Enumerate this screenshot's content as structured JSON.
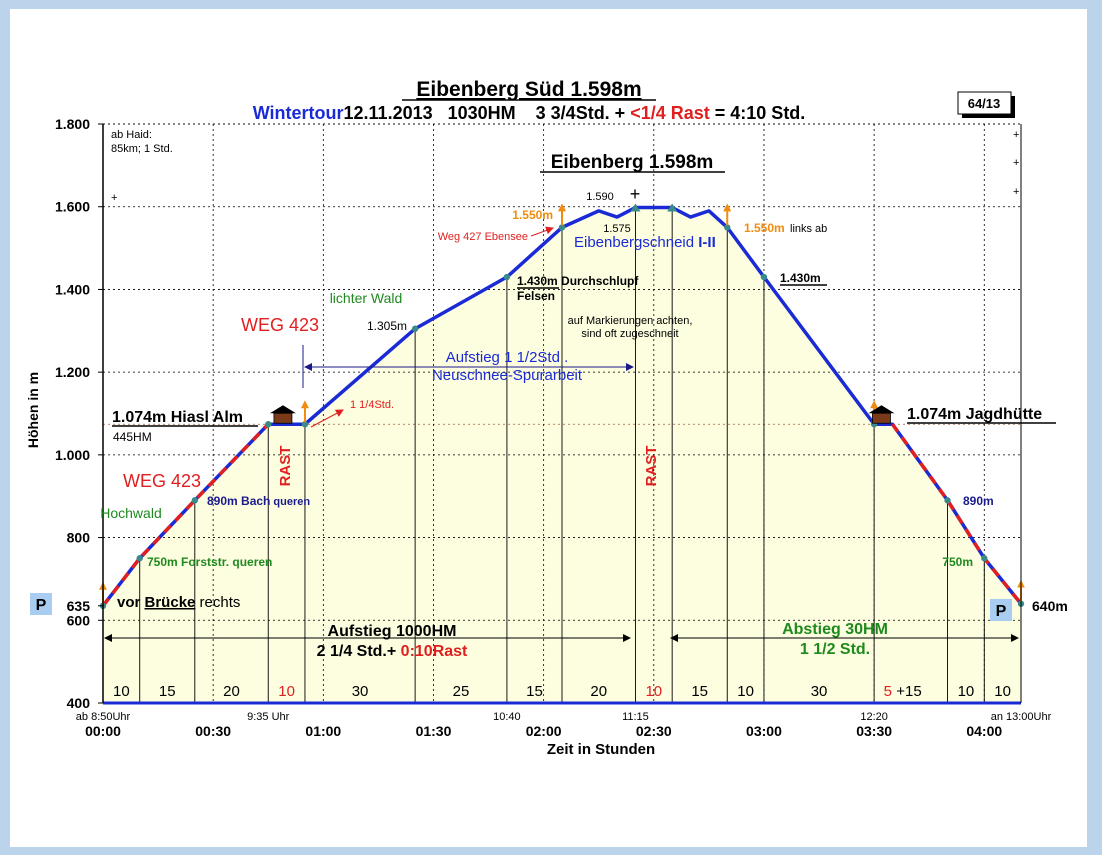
{
  "chart_data": {
    "type": "line",
    "title": "Eibenberg Süd 1.598m",
    "subtitle": {
      "part1": "Wintertour",
      "part2": "12.11.2013   1030HM    3 3/4Std. + ",
      "part3": "<1/4 Rast",
      "part4": " = 4:10 Std."
    },
    "badge": "64/13",
    "xlabel": "Zeit in  Stunden",
    "ylabel": "Höhen in m",
    "xlim": [
      0,
      250
    ],
    "ylim": [
      400,
      1800
    ],
    "x_ticks": [
      {
        "x": 0,
        "label": "00:00"
      },
      {
        "x": 30,
        "label": "00:30"
      },
      {
        "x": 60,
        "label": "01:00"
      },
      {
        "x": 90,
        "label": "01:30"
      },
      {
        "x": 120,
        "label": "02:00"
      },
      {
        "x": 150,
        "label": "02:30"
      },
      {
        "x": 180,
        "label": "03:00"
      },
      {
        "x": 210,
        "label": "03:30"
      },
      {
        "x": 240,
        "label": "04:00"
      }
    ],
    "y_ticks": [
      {
        "y": 1800,
        "label": "1.800"
      },
      {
        "y": 1600,
        "label": "1.600"
      },
      {
        "y": 1400,
        "label": "1.400"
      },
      {
        "y": 1200,
        "label": "1.200"
      },
      {
        "y": 1000,
        "label": "1.000"
      },
      {
        "y": 800,
        "label": "800"
      },
      {
        "y": 635,
        "label": "635"
      },
      {
        "y": 600,
        "label": "600"
      },
      {
        "y": 400,
        "label": "400"
      }
    ],
    "clock_times": [
      {
        "x": 0,
        "label": "ab 8:50Uhr"
      },
      {
        "x": 45,
        "label": "9:35 Uhr"
      },
      {
        "x": 110,
        "label": "10:40"
      },
      {
        "x": 145,
        "label": "11:15"
      },
      {
        "x": 210,
        "label": "12:20"
      },
      {
        "x": 250,
        "label": "an 13:00Uhr"
      }
    ],
    "profile": [
      {
        "x": 0,
        "y": 635
      },
      {
        "x": 10,
        "y": 750
      },
      {
        "x": 25,
        "y": 890
      },
      {
        "x": 45,
        "y": 1074
      },
      {
        "x": 55,
        "y": 1074
      },
      {
        "x": 85,
        "y": 1305
      },
      {
        "x": 110,
        "y": 1430
      },
      {
        "x": 125,
        "y": 1550
      },
      {
        "x": 135,
        "y": 1590
      },
      {
        "x": 140,
        "y": 1575
      },
      {
        "x": 145,
        "y": 1598
      },
      {
        "x": 155,
        "y": 1598
      },
      {
        "x": 160,
        "y": 1575
      },
      {
        "x": 165,
        "y": 1590
      },
      {
        "x": 170,
        "y": 1550
      },
      {
        "x": 180,
        "y": 1430
      },
      {
        "x": 210,
        "y": 1074
      },
      {
        "x": 215,
        "y": 1074
      },
      {
        "x": 230,
        "y": 890
      },
      {
        "x": 240,
        "y": 750
      },
      {
        "x": 250,
        "y": 640
      }
    ],
    "red_segments": [
      [
        0,
        45
      ],
      [
        215,
        250
      ]
    ],
    "markers": [
      {
        "x": 0,
        "y": 635
      },
      {
        "x": 10,
        "y": 750
      },
      {
        "x": 25,
        "y": 890
      },
      {
        "x": 45,
        "y": 1074
      },
      {
        "x": 55,
        "y": 1074
      },
      {
        "x": 85,
        "y": 1305
      },
      {
        "x": 110,
        "y": 1430
      },
      {
        "x": 125,
        "y": 1550
      },
      {
        "x": 145,
        "y": 1598
      },
      {
        "x": 155,
        "y": 1598
      },
      {
        "x": 170,
        "y": 1550
      },
      {
        "x": 180,
        "y": 1430
      },
      {
        "x": 210,
        "y": 1074
      },
      {
        "x": 230,
        "y": 890
      },
      {
        "x": 240,
        "y": 750
      },
      {
        "x": 250,
        "y": 640
      }
    ],
    "pointer_arrows": [
      0,
      55,
      125,
      170,
      210,
      250
    ],
    "huts": [
      {
        "x": 49
      },
      {
        "x": 212
      }
    ],
    "segment_lines": [
      10,
      25,
      45,
      55,
      85,
      110,
      125,
      145,
      155,
      170,
      180,
      210,
      230,
      240
    ],
    "segment_minutes": [
      {
        "x": 5,
        "label": "10",
        "color": "#000000"
      },
      {
        "x": 17.5,
        "label": "15",
        "color": "#000000"
      },
      {
        "x": 35,
        "label": "20",
        "color": "#000000"
      },
      {
        "x": 50,
        "label": "10",
        "color": "#e02020"
      },
      {
        "x": 70,
        "label": "30",
        "color": "#000000"
      },
      {
        "x": 97.5,
        "label": "25",
        "color": "#000000"
      },
      {
        "x": 117.5,
        "label": "15",
        "color": "#000000"
      },
      {
        "x": 135,
        "label": "20",
        "color": "#000000"
      },
      {
        "x": 150,
        "label": "10",
        "color": "#e02020"
      },
      {
        "x": 162.5,
        "label": "15",
        "color": "#000000"
      },
      {
        "x": 175,
        "label": "10",
        "color": "#000000"
      },
      {
        "x": 195,
        "label": "30",
        "color": "#000000"
      },
      {
        "x": 219.5,
        "label": "+15",
        "color": "#000000"
      },
      {
        "x": 235,
        "label": "10",
        "color": "#000000"
      },
      {
        "x": 245,
        "label": "10",
        "color": "#000000"
      }
    ],
    "minute_five": {
      "x": 217,
      "label": "5"
    },
    "annotations": {
      "summit_title": "Eibenberg 1.598m",
      "haid_note_1": "ab Haid:",
      "haid_note_2": "85km; 1 Std.",
      "l1590": "1.590",
      "l1575": "1.575",
      "l1550_left": "1.550m",
      "weg427": "Weg 427 Ebensee",
      "eibenbergschneid_1": "Eibenbergschneid ",
      "eibenbergschneid_2": "I-II",
      "l1550_right": "1.550m",
      "links_ab": " links ab",
      "l1430_1": "1.430m Durchschlupf",
      "l1430_2": "Felsen",
      "l1430_right": "1.430m",
      "markierung_1": "auf Markierungen achten,",
      "markierung_2": "sind oft zugeschneit",
      "lichter_wald": "lichter Wald",
      "l1305": "1.305m",
      "weg423_upper": "WEG 423",
      "aufstieg_1": "Aufstieg 1 1/2Std .",
      "aufstieg_2": "Neuschnee-Spurarbeit",
      "q14std": "1 1/4Std.",
      "hiasl": "1.074m Hiasl Alm",
      "hm445": "445HM",
      "jagdhuette": "1.074m Jagdhütte",
      "rast": "RAST",
      "weg423_lower": "WEG 423",
      "hochwald": "Hochwald",
      "bach_1": "890m Bach",
      "bach_2": " queren",
      "l890_right": "890m",
      "forst": "750m Forststr. queren",
      "l750_right": "750m",
      "vor": "vor ",
      "bruecke": "Brücke",
      "rechts": " rechts",
      "l640": "640m",
      "p": "P",
      "plus": "+",
      "aufstieg_hm": "Aufstieg 1000HM",
      "aufstieg_time_1": "2 1/4 Std.+ ",
      "aufstieg_time_2": "0:10Rast",
      "abstieg_hm": "Abstieg 30HM",
      "abstieg_time": "1 1/2 Std."
    },
    "colors": {
      "line": "#1a2bd6",
      "rest_dash": "#e02020",
      "fill": "#fdfde0",
      "orange": "#f08c10",
      "green": "#1e8a1e",
      "navy": "#1a1a8c",
      "red": "#e02020"
    }
  }
}
